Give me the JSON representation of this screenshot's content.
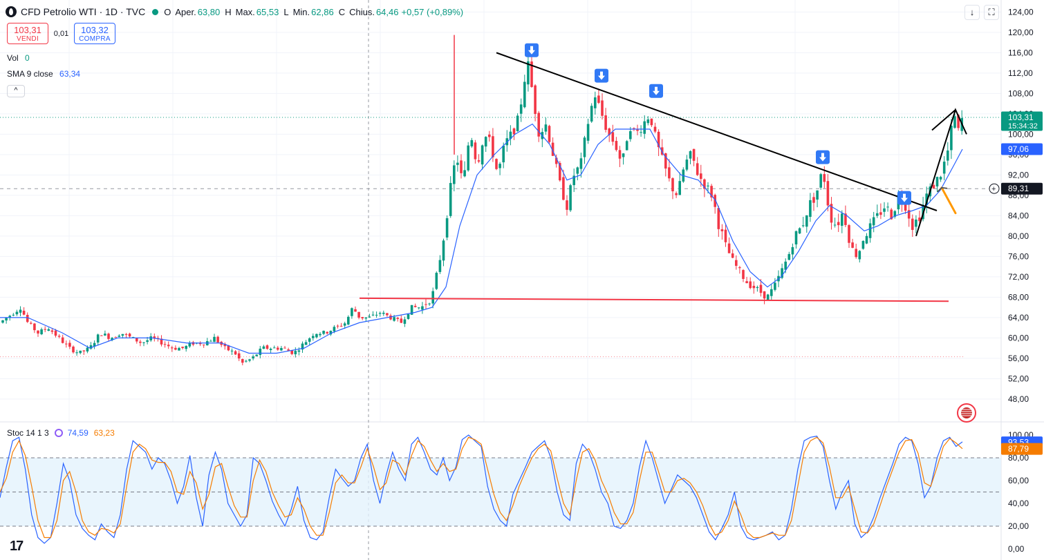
{
  "header": {
    "title": "CFD Petrolio WTI · 1D · TVC",
    "open_label": "O",
    "open_prefix": "Aper.",
    "open": "63,80",
    "high_label": "H",
    "high_prefix": "Max.",
    "high": "65,53",
    "low_label": "L",
    "low_prefix": "Min.",
    "low": "62,86",
    "close_label": "C",
    "close_prefix": "Chius.",
    "close": "64,46",
    "change": "+0,57 (+0,89%)"
  },
  "trade": {
    "sell_price": "103,31",
    "sell_label": "VENDI",
    "spread": "0,01",
    "buy_price": "103,32",
    "buy_label": "COMPRA"
  },
  "volume": {
    "label": "Vol",
    "value": "0"
  },
  "sma": {
    "label": "SMA 9 close",
    "value": "63,34"
  },
  "collapse_icon": "chevron-up-icon",
  "stoch": {
    "label": "Stoc 14 1 3",
    "k_value": "74,59",
    "d_value": "63,23",
    "icon": "refresh-icon"
  },
  "toolbar": {
    "download_icon": "arrow-down-icon",
    "fullscreen_icon": "fullscreen-icon"
  },
  "colors": {
    "bull": "#089981",
    "bear": "#f23645",
    "sma": "#2962ff",
    "stoch_k": "#2962ff",
    "stoch_d": "#f57c00",
    "support": "#f23645",
    "band": "#e3f2fd",
    "arrow_marker": "#3179f5",
    "arrow_pointer": "#ff9800"
  },
  "chart_data": [
    {
      "type": "candlestick",
      "title": "CFD Petrolio WTI · 1D · TVC",
      "ylim": [
        45,
        125
      ],
      "y_ticks": [
        "124,00",
        "120,00",
        "116,00",
        "112,00",
        "108,00",
        "104,00",
        "100,00",
        "96,00",
        "92,00",
        "88,00",
        "84,00",
        "80,00",
        "76,00",
        "72,00",
        "68,00",
        "64,00",
        "60,00",
        "56,00",
        "52,00",
        "48,00"
      ],
      "price_labels": {
        "last": "103,31",
        "countdown": "15:34:32",
        "sma_last": "97,06",
        "crosshair": "89,31"
      },
      "close_path": [
        [
          0,
          63
        ],
        [
          10,
          64
        ],
        [
          20,
          65
        ],
        [
          30,
          66
        ],
        [
          40,
          63
        ],
        [
          55,
          61
        ],
        [
          70,
          62
        ],
        [
          85,
          60
        ],
        [
          100,
          58
        ],
        [
          115,
          57
        ],
        [
          130,
          58
        ],
        [
          145,
          61
        ],
        [
          160,
          60
        ],
        [
          175,
          61
        ],
        [
          190,
          60
        ],
        [
          205,
          59
        ],
        [
          220,
          60
        ],
        [
          235,
          59
        ],
        [
          250,
          58
        ],
        [
          265,
          58
        ],
        [
          280,
          59
        ],
        [
          295,
          59
        ],
        [
          310,
          60
        ],
        [
          325,
          58
        ],
        [
          340,
          57
        ],
        [
          350,
          55
        ],
        [
          365,
          56
        ],
        [
          380,
          58
        ],
        [
          395,
          58
        ],
        [
          410,
          58
        ],
        [
          425,
          57
        ],
        [
          440,
          59
        ],
        [
          455,
          61
        ],
        [
          470,
          61
        ],
        [
          485,
          62
        ],
        [
          500,
          63
        ],
        [
          510,
          66
        ],
        [
          520,
          64
        ],
        [
          535,
          64
        ],
        [
          550,
          65
        ],
        [
          565,
          64
        ],
        [
          580,
          63
        ],
        [
          595,
          66
        ],
        [
          610,
          66
        ],
        [
          625,
          68
        ],
        [
          640,
          78
        ],
        [
          650,
          88
        ],
        [
          660,
          96
        ],
        [
          670,
          90
        ],
        [
          680,
          101
        ],
        [
          690,
          94
        ],
        [
          700,
          100
        ],
        [
          710,
          98
        ],
        [
          720,
          92
        ],
        [
          730,
          98
        ],
        [
          740,
          100
        ],
        [
          750,
          103
        ],
        [
          760,
          112
        ],
        [
          765,
          114
        ],
        [
          770,
          108
        ],
        [
          780,
          100
        ],
        [
          790,
          102
        ],
        [
          800,
          96
        ],
        [
          810,
          90
        ],
        [
          820,
          86
        ],
        [
          830,
          92
        ],
        [
          840,
          94
        ],
        [
          850,
          102
        ],
        [
          860,
          108
        ],
        [
          870,
          104
        ],
        [
          880,
          100
        ],
        [
          890,
          98
        ],
        [
          900,
          94
        ],
        [
          910,
          102
        ],
        [
          920,
          100
        ],
        [
          930,
          102
        ],
        [
          940,
          104
        ],
        [
          950,
          98
        ],
        [
          960,
          94
        ],
        [
          970,
          90
        ],
        [
          980,
          88
        ],
        [
          990,
          94
        ],
        [
          1000,
          96
        ],
        [
          1010,
          92
        ],
        [
          1020,
          90
        ],
        [
          1030,
          88
        ],
        [
          1040,
          82
        ],
        [
          1050,
          78
        ],
        [
          1060,
          75
        ],
        [
          1070,
          73
        ],
        [
          1080,
          71
        ],
        [
          1090,
          70
        ],
        [
          1100,
          69
        ],
        [
          1110,
          68
        ],
        [
          1120,
          70
        ],
        [
          1130,
          73
        ],
        [
          1140,
          76
        ],
        [
          1150,
          80
        ],
        [
          1160,
          82
        ],
        [
          1170,
          86
        ],
        [
          1180,
          88
        ],
        [
          1190,
          93
        ],
        [
          1195,
          89
        ],
        [
          1200,
          84
        ],
        [
          1210,
          82
        ],
        [
          1220,
          85
        ],
        [
          1230,
          78
        ],
        [
          1240,
          76
        ],
        [
          1250,
          80
        ],
        [
          1260,
          82
        ],
        [
          1270,
          84
        ],
        [
          1280,
          86
        ],
        [
          1290,
          84
        ],
        [
          1300,
          88
        ],
        [
          1310,
          86
        ],
        [
          1320,
          82
        ],
        [
          1330,
          84
        ],
        [
          1340,
          88
        ],
        [
          1350,
          90
        ],
        [
          1360,
          92
        ],
        [
          1370,
          96
        ],
        [
          1380,
          104
        ],
        [
          1385,
          100
        ],
        [
          1392,
          103.31
        ]
      ],
      "sma9_path": [
        [
          0,
          64
        ],
        [
          40,
          64
        ],
        [
          90,
          61
        ],
        [
          130,
          58
        ],
        [
          170,
          60
        ],
        [
          220,
          60
        ],
        [
          270,
          59
        ],
        [
          320,
          59
        ],
        [
          360,
          57
        ],
        [
          400,
          57
        ],
        [
          440,
          58
        ],
        [
          480,
          61
        ],
        [
          520,
          63
        ],
        [
          560,
          64
        ],
        [
          600,
          65
        ],
        [
          625,
          66
        ],
        [
          645,
          70
        ],
        [
          665,
          82
        ],
        [
          690,
          92
        ],
        [
          715,
          96
        ],
        [
          745,
          100
        ],
        [
          770,
          102
        ],
        [
          795,
          98
        ],
        [
          820,
          91
        ],
        [
          840,
          92
        ],
        [
          865,
          98
        ],
        [
          890,
          101
        ],
        [
          915,
          101
        ],
        [
          940,
          101
        ],
        [
          960,
          96
        ],
        [
          985,
          92
        ],
        [
          1010,
          91
        ],
        [
          1035,
          87
        ],
        [
          1060,
          79
        ],
        [
          1085,
          73
        ],
        [
          1110,
          70
        ],
        [
          1130,
          72
        ],
        [
          1155,
          77
        ],
        [
          1180,
          83
        ],
        [
          1200,
          86
        ],
        [
          1225,
          84
        ],
        [
          1250,
          81
        ],
        [
          1270,
          82
        ],
        [
          1295,
          84
        ],
        [
          1320,
          85
        ],
        [
          1340,
          86
        ],
        [
          1360,
          89
        ],
        [
          1380,
          94
        ],
        [
          1392,
          97.06
        ]
      ],
      "resistance_line": {
        "from": [
          718,
          116
        ],
        "to": [
          1355,
          85
        ]
      },
      "support_line": {
        "from": [
          520,
          67.8
        ],
        "to": [
          1372,
          67.2
        ]
      },
      "rising_wedge": [
        [
          1325,
          80
        ],
        [
          1382,
          104.8
        ],
        [
          1398,
          100
        ]
      ],
      "wedge_upper": {
        "from": [
          1348,
          100.8
        ],
        "to": [
          1382,
          104.8
        ]
      },
      "sell_arrows_at": [
        [
          769,
          116.5
        ],
        [
          870,
          111.5
        ],
        [
          949,
          108.5
        ],
        [
          1190,
          95.5
        ],
        [
          1308,
          87.5
        ]
      ],
      "spike": {
        "x": 657,
        "high": 119.5
      },
      "crosshair": {
        "x": 533,
        "price": 89.31
      },
      "last_price": 103.31,
      "pointer": {
        "from": [
          1382,
          84.5
        ],
        "to": [
          1362,
          89.5
        ]
      }
    },
    {
      "type": "line",
      "title": "Stoc 14 1 3",
      "ylim": [
        0,
        100
      ],
      "y_ticks": [
        "100,00",
        "80,00",
        "60,00",
        "40,00",
        "20,00",
        "0,00"
      ],
      "bands": [
        20,
        50,
        80
      ],
      "value_labels": {
        "k": "93,53",
        "d": "87,79"
      },
      "series": [
        {
          "name": "%K",
          "values": [
            45,
            72,
            95,
            98,
            70,
            30,
            10,
            5,
            10,
            40,
            75,
            60,
            30,
            18,
            12,
            8,
            22,
            15,
            10,
            30,
            70,
            95,
            90,
            85,
            70,
            80,
            75,
            60,
            40,
            55,
            82,
            45,
            20,
            65,
            85,
            70,
            40,
            30,
            20,
            30,
            80,
            75,
            60,
            42,
            30,
            20,
            35,
            55,
            25,
            10,
            8,
            15,
            45,
            70,
            62,
            55,
            60,
            80,
            92,
            60,
            40,
            65,
            85,
            70,
            60,
            92,
            98,
            85,
            70,
            65,
            80,
            60,
            72,
            96,
            100,
            95,
            90,
            55,
            35,
            25,
            20,
            48,
            60,
            72,
            85,
            90,
            95,
            80,
            50,
            30,
            25,
            75,
            92,
            85,
            70,
            50,
            40,
            20,
            18,
            25,
            40,
            72,
            95,
            80,
            60,
            40,
            52,
            65,
            60,
            55,
            45,
            30,
            15,
            8,
            18,
            30,
            50,
            20,
            10,
            8,
            10,
            12,
            15,
            8,
            12,
            35,
            70,
            95,
            98,
            99,
            90,
            60,
            35,
            50,
            60,
            22,
            10,
            15,
            28,
            45,
            60,
            75,
            92,
            98,
            95,
            75,
            45,
            55,
            80,
            95,
            98,
            90,
            94
          ]
        },
        {
          "name": "%D",
          "values": [
            50,
            62,
            85,
            95,
            82,
            55,
            25,
            10,
            10,
            25,
            60,
            68,
            50,
            25,
            15,
            12,
            18,
            17,
            14,
            22,
            55,
            85,
            92,
            88,
            78,
            76,
            76,
            68,
            50,
            48,
            68,
            58,
            35,
            48,
            72,
            75,
            55,
            38,
            28,
            28,
            60,
            78,
            68,
            50,
            38,
            28,
            30,
            45,
            35,
            20,
            12,
            12,
            32,
            58,
            65,
            58,
            58,
            72,
            88,
            72,
            52,
            58,
            78,
            75,
            65,
            82,
            95,
            90,
            78,
            68,
            75,
            68,
            70,
            88,
            98,
            96,
            92,
            70,
            48,
            32,
            25,
            38,
            55,
            68,
            80,
            88,
            92,
            86,
            62,
            40,
            30,
            60,
            85,
            88,
            78,
            60,
            48,
            32,
            22,
            22,
            32,
            60,
            85,
            85,
            68,
            50,
            50,
            60,
            62,
            58,
            50,
            38,
            22,
            12,
            15,
            25,
            42,
            30,
            15,
            10,
            10,
            12,
            14,
            12,
            12,
            25,
            55,
            85,
            95,
            98,
            93,
            72,
            45,
            45,
            55,
            35,
            15,
            14,
            22,
            38,
            55,
            70,
            85,
            95,
            96,
            84,
            58,
            55,
            72,
            90,
            97,
            93,
            88
          ]
        }
      ]
    }
  ]
}
